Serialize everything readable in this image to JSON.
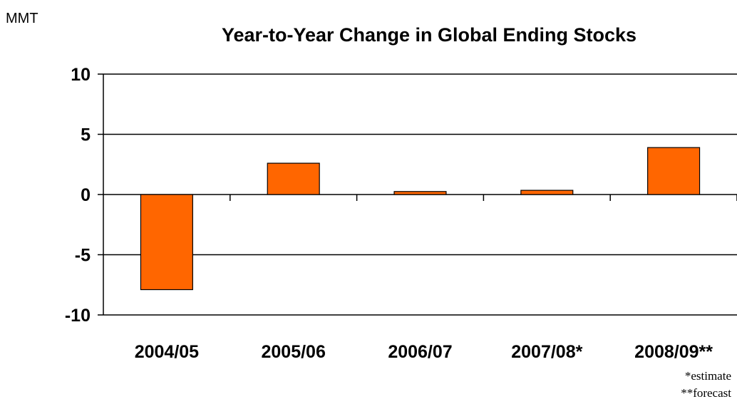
{
  "unit_label": "MMT",
  "footnotes": [
    "*estimate",
    "**forecast"
  ],
  "colors": {
    "bar_fill": "#ff6600",
    "bar_stroke": "#000000",
    "grid": "#000000",
    "axis": "#000000"
  },
  "chart_data": {
    "type": "bar",
    "title": "Year-to-Year Change in Global Ending Stocks",
    "xlabel": "",
    "ylabel": "MMT",
    "categories": [
      "2004/05",
      "2005/06",
      "2006/07",
      "2007/08*",
      "2008/09**"
    ],
    "values": [
      -7.9,
      2.6,
      0.25,
      0.35,
      3.9
    ],
    "ylim": [
      -10,
      10
    ],
    "yticks": [
      10,
      5,
      0,
      -5,
      -10
    ],
    "ytick_labels": [
      "10",
      "5",
      "0",
      "-5",
      "-10"
    ],
    "grid": true,
    "legend": "none"
  }
}
